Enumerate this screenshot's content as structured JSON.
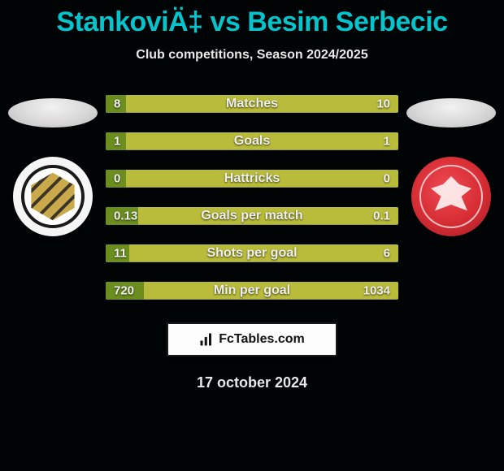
{
  "header": {
    "title": "StankoviÄ‡ vs Besim Serbecic",
    "subtitle": "Club competitions, Season 2024/2025",
    "title_color": "#06c4cc",
    "title_fontsize": 34,
    "subtitle_fontsize": 16
  },
  "players": {
    "left": {
      "badge_name": "cukaricki",
      "badge_bg": "#f5f5f5"
    },
    "right": {
      "badge_name": "radnicki",
      "badge_bg": "#d62c34"
    }
  },
  "bars": {
    "track_color": "#b9bc3a",
    "fill_color": "#6b8e1f",
    "label_fontsize": 16,
    "value_fontsize": 15,
    "items": [
      {
        "label": "Matches",
        "left_value": "8",
        "right_value": "10",
        "left_fill_pct": 7
      },
      {
        "label": "Goals",
        "left_value": "1",
        "right_value": "1",
        "left_fill_pct": 7
      },
      {
        "label": "Hattricks",
        "left_value": "0",
        "right_value": "0",
        "left_fill_pct": 7
      },
      {
        "label": "Goals per match",
        "left_value": "0.13",
        "right_value": "0.1",
        "left_fill_pct": 11
      },
      {
        "label": "Shots per goal",
        "left_value": "11",
        "right_value": "6",
        "left_fill_pct": 8
      },
      {
        "label": "Min per goal",
        "left_value": "720",
        "right_value": "1034",
        "left_fill_pct": 13
      }
    ]
  },
  "footer": {
    "brand_text": "FcTables.com",
    "date_text": "17 october 2024",
    "brand_box_bg": "#fdfdfd",
    "brand_text_color": "#111111"
  },
  "background_color": "#000405"
}
